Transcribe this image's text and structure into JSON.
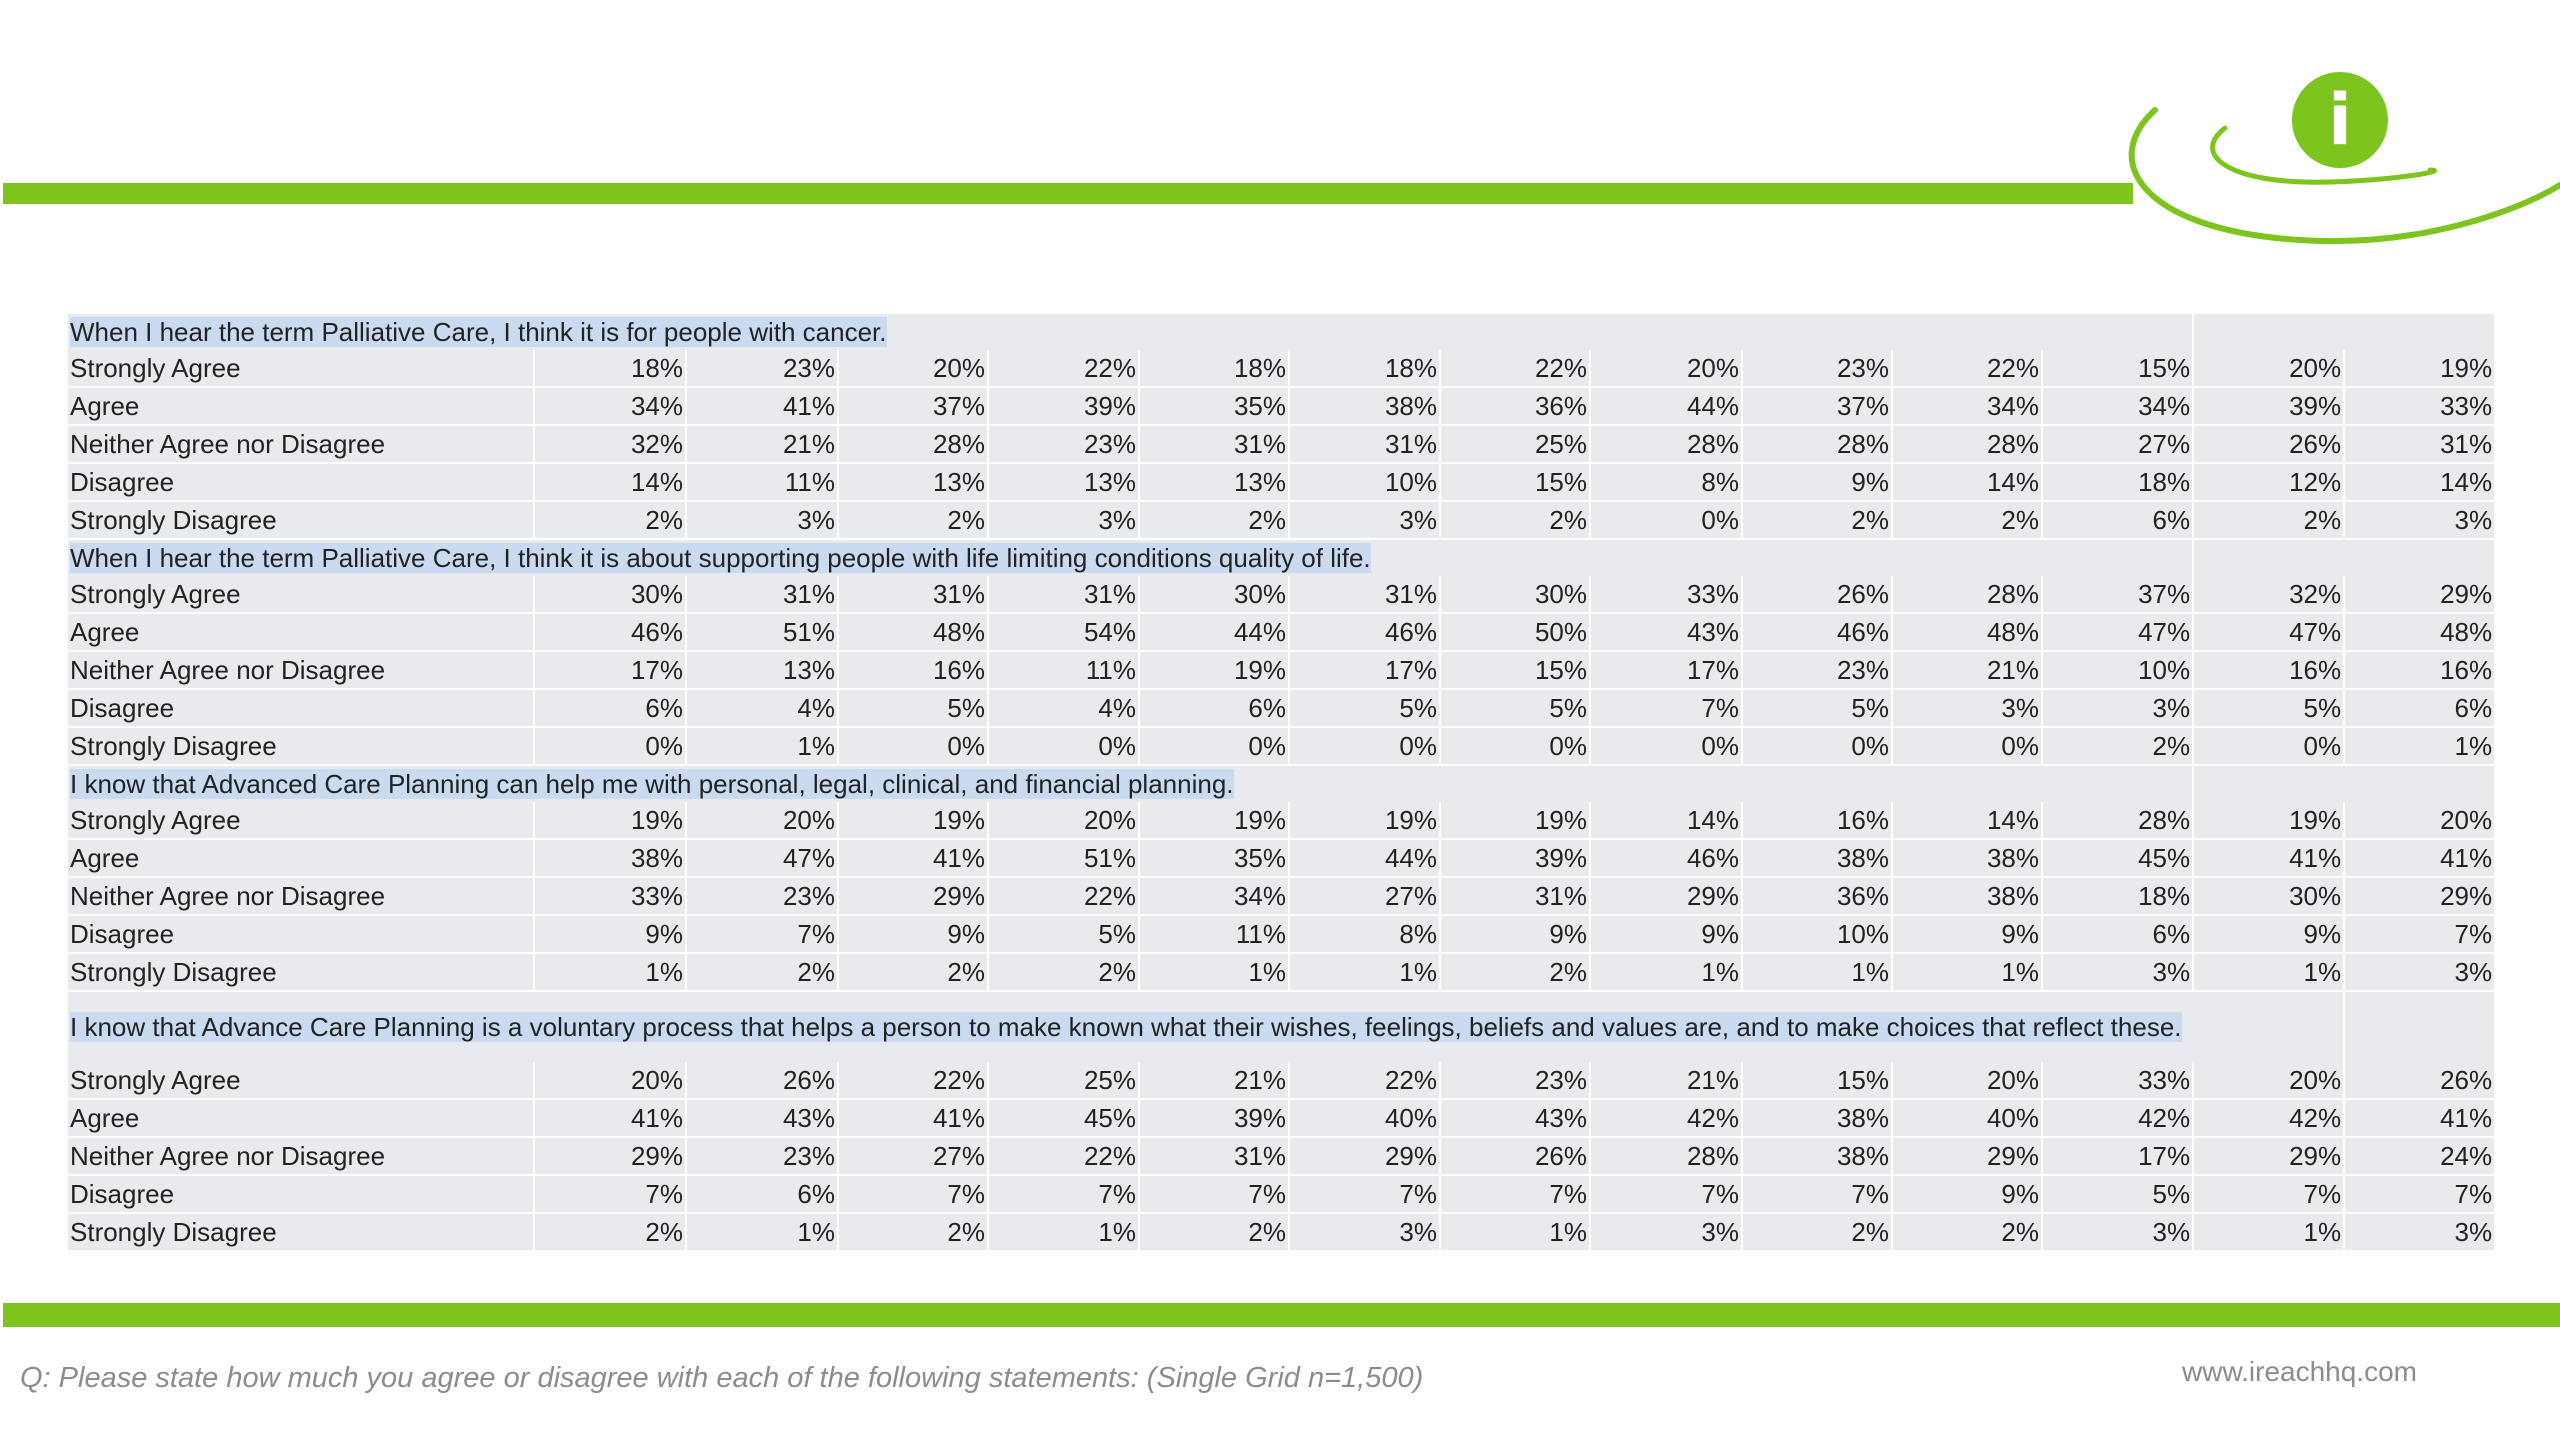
{
  "footer": {
    "question_note": "Q: Please state how much you agree or disagree with each of the following statements: (Single Grid n=1,500)",
    "website": "www.ireachhq.com"
  },
  "brand": {
    "logo_letter": "i",
    "accent_color": "#7dc41f"
  },
  "sections": [
    {
      "question": "When I hear the term Palliative Care, I think  it is for people with cancer.",
      "rows": [
        {
          "label": "Strongly Agree",
          "values": [
            "18%",
            "23%",
            "20%",
            "22%",
            "18%",
            "18%",
            "22%",
            "20%",
            "23%",
            "22%",
            "15%",
            "20%",
            "19%"
          ]
        },
        {
          "label": "Agree",
          "values": [
            "34%",
            "41%",
            "37%",
            "39%",
            "35%",
            "38%",
            "36%",
            "44%",
            "37%",
            "34%",
            "34%",
            "39%",
            "33%"
          ]
        },
        {
          "label": "Neither Agree nor Disagree",
          "values": [
            "32%",
            "21%",
            "28%",
            "23%",
            "31%",
            "31%",
            "25%",
            "28%",
            "28%",
            "28%",
            "27%",
            "26%",
            "31%"
          ]
        },
        {
          "label": "Disagree",
          "values": [
            "14%",
            "11%",
            "13%",
            "13%",
            "13%",
            "10%",
            "15%",
            "8%",
            "9%",
            "14%",
            "18%",
            "12%",
            "14%"
          ]
        },
        {
          "label": "Strongly Disagree",
          "values": [
            "2%",
            "3%",
            "2%",
            "3%",
            "2%",
            "3%",
            "2%",
            "0%",
            "2%",
            "2%",
            "6%",
            "2%",
            "3%"
          ]
        }
      ]
    },
    {
      "question": "When I hear the term Palliative Care, I think  it is about supporting people with life limiting conditions quality of life.",
      "rows": [
        {
          "label": "Strongly Agree",
          "values": [
            "30%",
            "31%",
            "31%",
            "31%",
            "30%",
            "31%",
            "30%",
            "33%",
            "26%",
            "28%",
            "37%",
            "32%",
            "29%"
          ]
        },
        {
          "label": "Agree",
          "values": [
            "46%",
            "51%",
            "48%",
            "54%",
            "44%",
            "46%",
            "50%",
            "43%",
            "46%",
            "48%",
            "47%",
            "47%",
            "48%"
          ]
        },
        {
          "label": "Neither Agree nor Disagree",
          "values": [
            "17%",
            "13%",
            "16%",
            "11%",
            "19%",
            "17%",
            "15%",
            "17%",
            "23%",
            "21%",
            "10%",
            "16%",
            "16%"
          ]
        },
        {
          "label": "Disagree",
          "values": [
            "6%",
            "4%",
            "5%",
            "4%",
            "6%",
            "5%",
            "5%",
            "7%",
            "5%",
            "3%",
            "3%",
            "5%",
            "6%"
          ]
        },
        {
          "label": "Strongly Disagree",
          "values": [
            "0%",
            "1%",
            "0%",
            "0%",
            "0%",
            "0%",
            "0%",
            "0%",
            "0%",
            "0%",
            "2%",
            "0%",
            "1%"
          ]
        }
      ]
    },
    {
      "question": "I know that Advanced Care Planning can help me with personal, legal, clinical, and financial planning.",
      "rows": [
        {
          "label": "Strongly Agree",
          "values": [
            "19%",
            "20%",
            "19%",
            "20%",
            "19%",
            "19%",
            "19%",
            "14%",
            "16%",
            "14%",
            "28%",
            "19%",
            "20%"
          ]
        },
        {
          "label": "Agree",
          "values": [
            "38%",
            "47%",
            "41%",
            "51%",
            "35%",
            "44%",
            "39%",
            "46%",
            "38%",
            "38%",
            "45%",
            "41%",
            "41%"
          ]
        },
        {
          "label": "Neither Agree nor Disagree",
          "values": [
            "33%",
            "23%",
            "29%",
            "22%",
            "34%",
            "27%",
            "31%",
            "29%",
            "36%",
            "38%",
            "18%",
            "30%",
            "29%"
          ]
        },
        {
          "label": "Disagree",
          "values": [
            "9%",
            "7%",
            "9%",
            "5%",
            "11%",
            "8%",
            "9%",
            "9%",
            "10%",
            "9%",
            "6%",
            "9%",
            "7%"
          ]
        },
        {
          "label": "Strongly Disagree",
          "values": [
            "1%",
            "2%",
            "2%",
            "2%",
            "1%",
            "1%",
            "2%",
            "1%",
            "1%",
            "1%",
            "3%",
            "1%",
            "3%"
          ]
        }
      ]
    },
    {
      "question": "I know that Advance Care Planning is a voluntary process that helps a person to make known what their wishes, feelings, beliefs and values are, and to make choices that reflect these.",
      "rows": [
        {
          "label": "Strongly Agree",
          "values": [
            "20%",
            "26%",
            "22%",
            "25%",
            "21%",
            "22%",
            "23%",
            "21%",
            "15%",
            "20%",
            "33%",
            "20%",
            "26%"
          ]
        },
        {
          "label": "Agree",
          "values": [
            "41%",
            "43%",
            "41%",
            "45%",
            "39%",
            "40%",
            "43%",
            "42%",
            "38%",
            "40%",
            "42%",
            "42%",
            "41%"
          ]
        },
        {
          "label": "Neither Agree nor Disagree",
          "values": [
            "29%",
            "23%",
            "27%",
            "22%",
            "31%",
            "29%",
            "26%",
            "28%",
            "38%",
            "29%",
            "17%",
            "29%",
            "24%"
          ]
        },
        {
          "label": "Disagree",
          "values": [
            "7%",
            "6%",
            "7%",
            "7%",
            "7%",
            "7%",
            "7%",
            "7%",
            "7%",
            "9%",
            "5%",
            "7%",
            "7%"
          ]
        },
        {
          "label": "Strongly Disagree",
          "values": [
            "2%",
            "1%",
            "2%",
            "1%",
            "2%",
            "3%",
            "1%",
            "3%",
            "2%",
            "2%",
            "3%",
            "1%",
            "3%"
          ]
        }
      ]
    }
  ]
}
